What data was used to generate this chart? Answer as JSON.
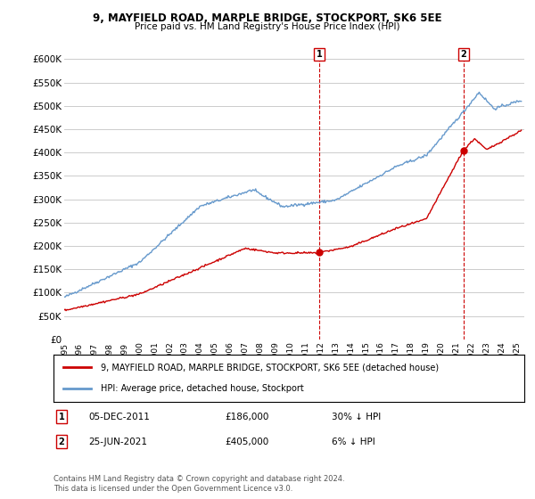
{
  "title": "9, MAYFIELD ROAD, MARPLE BRIDGE, STOCKPORT, SK6 5EE",
  "subtitle": "Price paid vs. HM Land Registry's House Price Index (HPI)",
  "legend_label_red": "9, MAYFIELD ROAD, MARPLE BRIDGE, STOCKPORT, SK6 5EE (detached house)",
  "legend_label_blue": "HPI: Average price, detached house, Stockport",
  "annotation1_date": "05-DEC-2011",
  "annotation1_price": "£186,000",
  "annotation1_hpi": "30% ↓ HPI",
  "annotation2_date": "25-JUN-2021",
  "annotation2_price": "£405,000",
  "annotation2_hpi": "6% ↓ HPI",
  "footnote": "Contains HM Land Registry data © Crown copyright and database right 2024.\nThis data is licensed under the Open Government Licence v3.0.",
  "red_color": "#cc0000",
  "blue_color": "#6699cc",
  "background_color": "#ffffff",
  "grid_color": "#cccccc",
  "ylim": [
    0,
    620000
  ],
  "yticks": [
    0,
    50000,
    100000,
    150000,
    200000,
    250000,
    300000,
    350000,
    400000,
    450000,
    500000,
    550000,
    600000
  ],
  "ytick_labels": [
    "£0",
    "£50K",
    "£100K",
    "£150K",
    "£200K",
    "£250K",
    "£300K",
    "£350K",
    "£400K",
    "£450K",
    "£500K",
    "£550K",
    "£600K"
  ],
  "sale1_x": 2011.92,
  "sale1_y": 186000,
  "sale2_x": 2021.48,
  "sale2_y": 405000,
  "xmin": 1995.0,
  "xmax": 2025.5
}
